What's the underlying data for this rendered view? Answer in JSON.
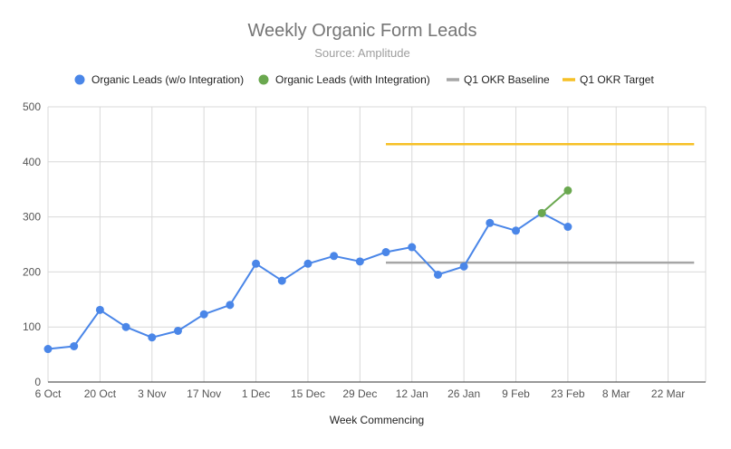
{
  "chart_data": {
    "type": "line",
    "title": "Weekly Organic Form Leads",
    "subtitle": "Source: Amplitude",
    "xlabel": "Week Commencing",
    "ylabel": "",
    "ylim": [
      0,
      500
    ],
    "yticks": [
      0,
      100,
      200,
      300,
      400,
      500
    ],
    "grid": true,
    "legend_position": "top",
    "x_tick_labels": [
      "6 Oct",
      "20 Oct",
      "3 Nov",
      "17 Nov",
      "1 Dec",
      "15 Dec",
      "29 Dec",
      "12 Jan",
      "26 Jan",
      "9 Feb",
      "23 Feb",
      "8 Mar",
      "22 Mar"
    ],
    "x_period_days": 7,
    "x_range_weeks": [
      0,
      25.3
    ],
    "series": [
      {
        "name": "Organic Leads (w/o Integration)",
        "color": "#4a86e8",
        "style": "line-points",
        "points": [
          {
            "x": "6 Oct",
            "y": 60
          },
          {
            "x": "13 Oct",
            "y": 65
          },
          {
            "x": "20 Oct",
            "y": 131
          },
          {
            "x": "27 Oct",
            "y": 100
          },
          {
            "x": "3 Nov",
            "y": 81
          },
          {
            "x": "10 Nov",
            "y": 93
          },
          {
            "x": "17 Nov",
            "y": 123
          },
          {
            "x": "24 Nov",
            "y": 140
          },
          {
            "x": "1 Dec",
            "y": 215
          },
          {
            "x": "8 Dec",
            "y": 184
          },
          {
            "x": "15 Dec",
            "y": 215
          },
          {
            "x": "22 Dec",
            "y": 229
          },
          {
            "x": "29 Dec",
            "y": 219
          },
          {
            "x": "5 Jan",
            "y": 236
          },
          {
            "x": "12 Jan",
            "y": 245
          },
          {
            "x": "19 Jan",
            "y": 195
          },
          {
            "x": "26 Jan",
            "y": 210
          },
          {
            "x": "2 Feb",
            "y": 289
          },
          {
            "x": "9 Feb",
            "y": 275
          },
          {
            "x": "16 Feb",
            "y": 307
          },
          {
            "x": "23 Feb",
            "y": 282
          }
        ]
      },
      {
        "name": "Organic Leads (with Integration)",
        "color": "#6aa84f",
        "style": "line-points",
        "points": [
          {
            "x": "16 Feb",
            "y": 307
          },
          {
            "x": "23 Feb",
            "y": 348
          }
        ]
      },
      {
        "name": "Q1 OKR Baseline",
        "color": "#a6a6a6",
        "style": "line",
        "points": [
          {
            "x": "5 Jan",
            "y": 217
          },
          {
            "x": "29 Mar",
            "y": 217
          }
        ]
      },
      {
        "name": "Q1 OKR Target",
        "color": "#f6c026",
        "style": "line",
        "points": [
          {
            "x": "5 Jan",
            "y": 432
          },
          {
            "x": "29 Mar",
            "y": 432
          }
        ]
      }
    ]
  }
}
